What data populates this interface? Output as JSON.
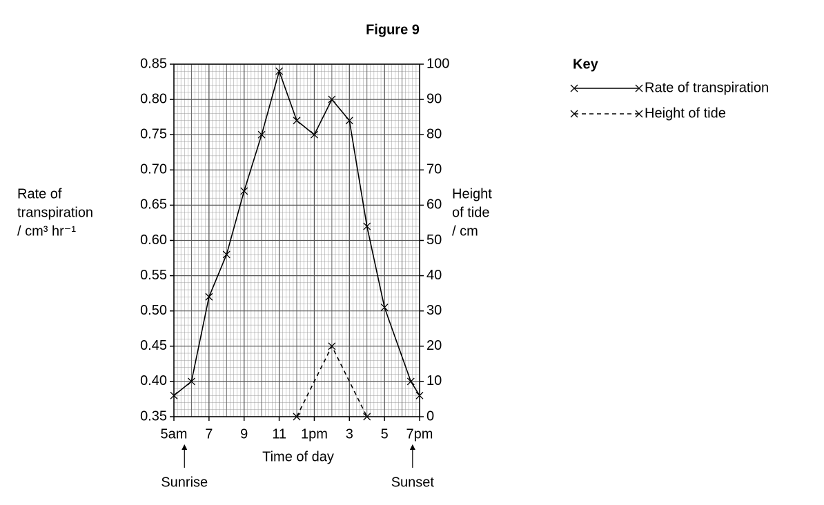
{
  "chart_data": {
    "type": "line",
    "title": "Figure 9",
    "xlabel": "Time of day",
    "ylabel": [
      "Rate of",
      "transpiration",
      "/ cm³ hr⁻¹"
    ],
    "y2label": [
      "Height",
      "of tide",
      "/ cm"
    ],
    "xlim": [
      5,
      19
    ],
    "xticks": [
      {
        "value": 5,
        "label": "5am"
      },
      7,
      9,
      11,
      {
        "value": 13,
        "label": "1pm"
      },
      {
        "value": 15,
        "label": "3"
      },
      {
        "value": 17,
        "label": "5"
      },
      {
        "value": 19,
        "label": "7pm"
      }
    ],
    "ylim": [
      0.35,
      0.85
    ],
    "yticks": [
      0.35,
      {
        "value": 0.4,
        "label": "0.40"
      },
      0.45,
      {
        "value": 0.5,
        "label": "0.50"
      },
      0.55,
      {
        "value": 0.6,
        "label": "0.60"
      },
      0.65,
      {
        "value": 0.7,
        "label": "0.70"
      },
      0.75,
      {
        "value": 0.8,
        "label": "0.80"
      },
      0.85
    ],
    "y2lim": [
      0,
      100
    ],
    "y2ticks": [
      0,
      10,
      20,
      30,
      40,
      50,
      60,
      70,
      80,
      90,
      100
    ],
    "grid": true,
    "legend": {
      "title": "Key",
      "position": "top-right"
    },
    "series": [
      {
        "name": "Rate of transpiration",
        "color": "#000000",
        "dash": "solid",
        "axis": "y",
        "x": [
          5,
          6,
          7,
          8,
          9,
          10,
          11,
          12,
          13,
          14,
          15,
          16,
          17,
          18.5,
          19
        ],
        "values": [
          0.38,
          0.4,
          0.52,
          0.58,
          0.67,
          0.75,
          0.84,
          0.77,
          0.75,
          0.8,
          0.77,
          0.62,
          0.505,
          0.4,
          0.38
        ]
      },
      {
        "name": "Height of tide",
        "color": "#000000",
        "dash": "dashed",
        "axis": "y2",
        "x": [
          12,
          14,
          16
        ],
        "values": [
          0,
          20,
          0
        ]
      }
    ],
    "annotations": [
      {
        "text": "Sunrise",
        "x": 5.6
      },
      {
        "text": "Sunset",
        "x": 18.6
      }
    ]
  }
}
